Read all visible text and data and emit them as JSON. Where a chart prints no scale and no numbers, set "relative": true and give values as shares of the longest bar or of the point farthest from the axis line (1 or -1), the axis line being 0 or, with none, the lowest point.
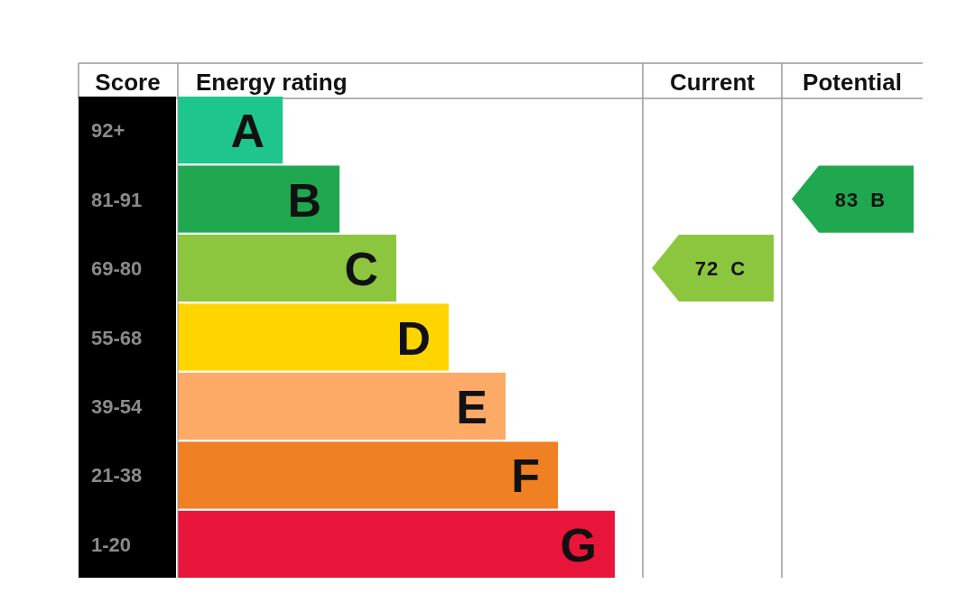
{
  "chart_data": {
    "type": "bar",
    "orientation": "horizontal",
    "relative": true,
    "categories": [
      "A",
      "B",
      "C",
      "D",
      "E",
      "F",
      "G"
    ],
    "values": [
      0.24,
      0.37,
      0.5,
      0.62,
      0.75,
      0.87,
      1
    ],
    "colors": [
      "#1ec68d",
      "#1fa84f",
      "#8cc63f",
      "#ffd500",
      "#fcaa65",
      "#ef8023",
      "#e9153b"
    ],
    "annotations": [
      "Score",
      "Energy rating",
      "Current",
      "Potential",
      "92+",
      "81-91",
      "69-80",
      "55-68",
      "39-54",
      "21-38",
      "1-20",
      "72 C",
      "83 B"
    ]
  }
}
